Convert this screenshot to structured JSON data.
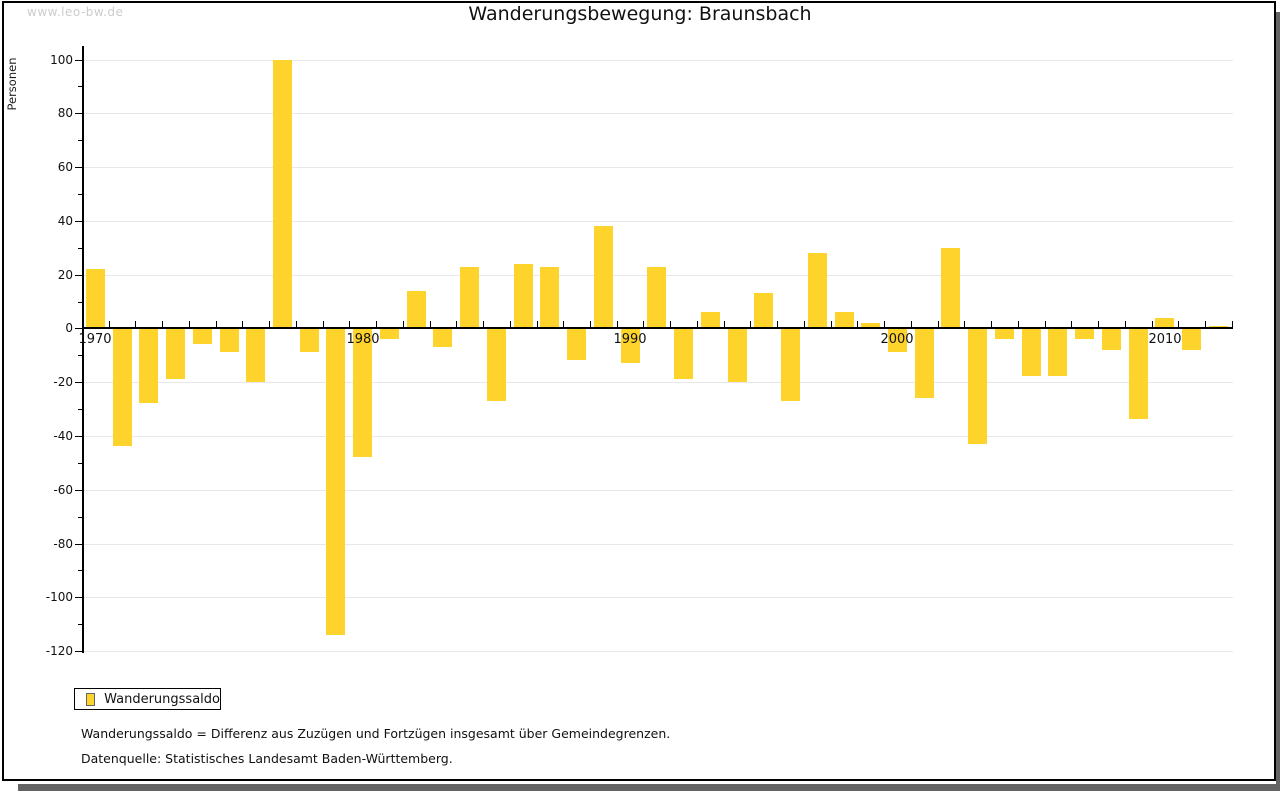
{
  "watermark": "www.leo-bw.de",
  "title": "Wanderungsbewegung: Braunsbach",
  "legend": {
    "label": "Wanderungssaldo"
  },
  "footnotes": {
    "definition": "Wanderungssaldo = Differenz aus Zuzügen und Fortzügen insgesamt über Gemeindegrenzen.",
    "source": "Datenquelle: Statistisches Landesamt Baden-Württemberg."
  },
  "colors": {
    "bar": "#fdd32c",
    "gridline": "#e8e8e8",
    "axis": "#000000",
    "watermark": "#cccccc",
    "frame_shadow": "#646464"
  },
  "chart_data": {
    "type": "bar",
    "title": "Wanderungsbewegung: Braunsbach",
    "xlabel": "",
    "ylabel": "Personen",
    "series_name": "Wanderungssaldo",
    "ylim": [
      -120,
      100
    ],
    "y_tick_step": 20,
    "y_tick_labels": [
      100,
      80,
      60,
      40,
      20,
      0,
      -20,
      -40,
      -60,
      -80,
      -100,
      -120
    ],
    "grid": true,
    "legend_position": "bottom-left",
    "x_decade_labels": [
      1970,
      1980,
      1990,
      2000,
      2010
    ],
    "years": [
      1970,
      1971,
      1972,
      1973,
      1974,
      1975,
      1976,
      1977,
      1978,
      1979,
      1980,
      1981,
      1982,
      1983,
      1984,
      1985,
      1986,
      1987,
      1988,
      1989,
      1990,
      1991,
      1992,
      1993,
      1994,
      1995,
      1996,
      1997,
      1998,
      1999,
      2000,
      2001,
      2002,
      2003,
      2004,
      2005,
      2006,
      2007,
      2008,
      2009,
      2010,
      2011,
      2012
    ],
    "values": [
      22,
      -44,
      -28,
      -19,
      -6,
      -9,
      -20,
      100,
      -9,
      -114,
      -48,
      -4,
      14,
      -7,
      23,
      -27,
      24,
      23,
      -12,
      38,
      -13,
      23,
      -19,
      6,
      -20,
      13,
      -27,
      28,
      6,
      2,
      -9,
      -26,
      30,
      -43,
      -4,
      -18,
      -18,
      -4,
      -8,
      -34,
      4,
      -8,
      1
    ]
  }
}
